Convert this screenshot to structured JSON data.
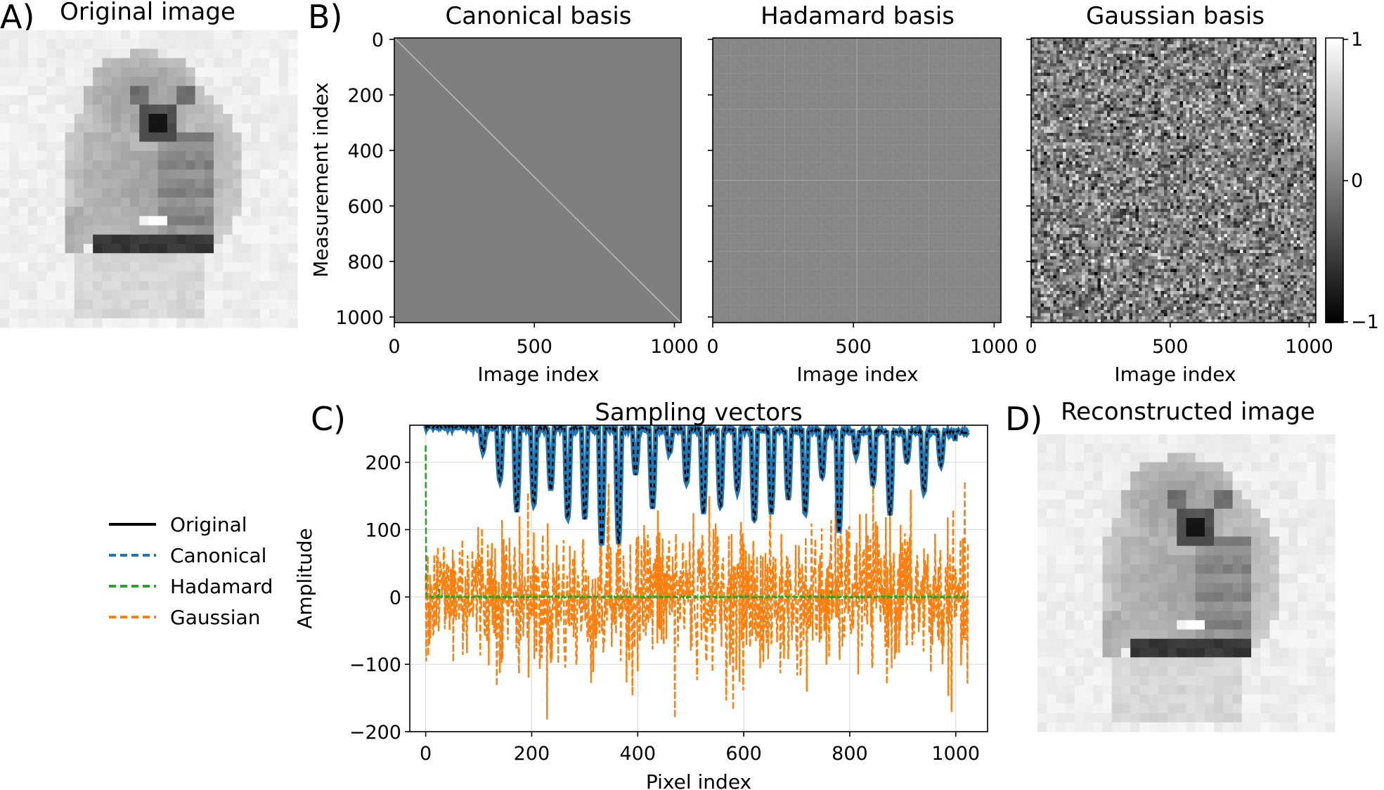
{
  "panels": {
    "a": {
      "letter": "A)",
      "title": "Original image"
    },
    "b": {
      "letter": "B)",
      "titles": [
        "Canonical basis",
        "Hadamard basis",
        "Gaussian basis"
      ],
      "ylabel": "Measurement index",
      "xlabel": "Image index",
      "yticks": [
        "0",
        "200",
        "400",
        "600",
        "800",
        "1000"
      ],
      "xticks": [
        "0",
        "500",
        "1000"
      ],
      "colorbar_ticks": [
        "1",
        "0",
        "−1"
      ]
    },
    "c": {
      "letter": "C)"
    },
    "d": {
      "letter": "D)",
      "title": "Reconstructed image"
    }
  },
  "image_data": {
    "gray_dark": "#111111",
    "gray_light": "#f2f2f2",
    "mid_gray": "#7f7f7f"
  },
  "chart_data": {
    "type": "line",
    "title": "Sampling vectors",
    "xlabel": "Pixel index",
    "ylabel": "Amplitude",
    "xlim": [
      -30,
      1060
    ],
    "ylim": [
      -200,
      255
    ],
    "xticks": [
      0,
      200,
      400,
      600,
      800,
      1000
    ],
    "yticks": [
      -200,
      -100,
      0,
      100,
      200
    ],
    "ytick_labels": [
      "−200",
      "−100",
      "0",
      "100",
      "200"
    ],
    "grid": true,
    "legend_position": "left-outside",
    "series": [
      {
        "name": "Original",
        "color": "#000000",
        "style": "solid",
        "summary": {
          "start": 253,
          "baseline": 245,
          "dips": [
            [
              200,
              130
            ],
            [
              310,
              110
            ],
            [
              340,
              70
            ],
            [
              360,
              75
            ],
            [
              440,
              125
            ],
            [
              560,
              130
            ],
            [
              640,
              120
            ],
            [
              720,
              120
            ],
            [
              790,
              95
            ],
            [
              980,
              195
            ]
          ]
        }
      },
      {
        "name": "Canonical",
        "color": "#1f77b4",
        "style": "dashed",
        "summary": {
          "tracks": "Original"
        }
      },
      {
        "name": "Hadamard",
        "color": "#2ca02c",
        "style": "dashed",
        "summary": {
          "start": 225,
          "baseline": 0,
          "spikes": [
            [
              25,
              12
            ],
            [
              765,
              10
            ]
          ]
        }
      },
      {
        "name": "Gaussian",
        "color": "#ff7f0e",
        "style": "dashed",
        "summary": {
          "mean": 0,
          "range": [
            -180,
            170
          ],
          "min_at": 470
        }
      }
    ]
  }
}
